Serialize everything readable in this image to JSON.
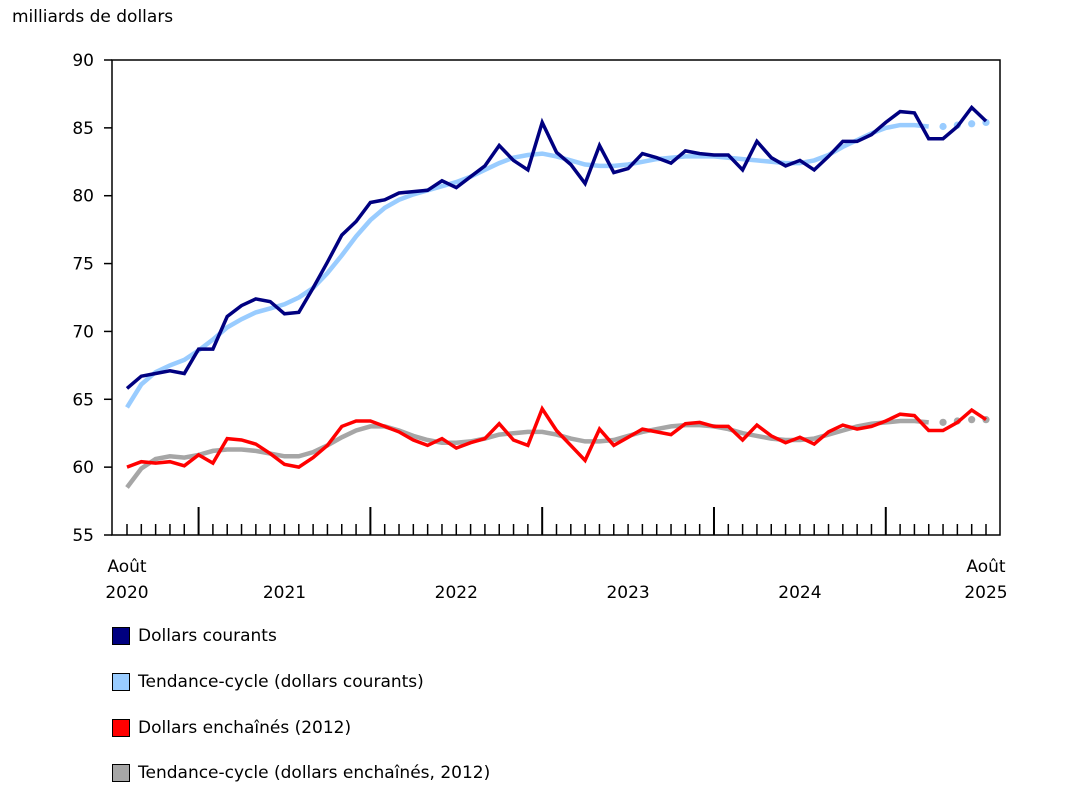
{
  "chart_data": {
    "type": "line",
    "ylabel": "milliards de dollars",
    "ylim": [
      55,
      90
    ],
    "yticks": [
      55,
      60,
      65,
      70,
      75,
      80,
      85,
      90
    ],
    "x_start": "2020-08",
    "x_end": "2025-08",
    "x_tick_labels": [
      {
        "month": "2020-08",
        "line1": "Août",
        "line2": "2020"
      },
      {
        "month": "2021-07",
        "line1": "",
        "line2": "2021"
      },
      {
        "month": "2022-07",
        "line1": "",
        "line2": "2022"
      },
      {
        "month": "2023-07",
        "line1": "",
        "line2": "2023"
      },
      {
        "month": "2024-07",
        "line1": "",
        "line2": "2024"
      },
      {
        "month": "2025-08",
        "line1": "Août",
        "line2": "2025"
      }
    ],
    "grid": false,
    "legend_placement": "bottom",
    "series": [
      {
        "name": "Dollars courants",
        "color": "#000080",
        "style": "solid",
        "values": [
          65.8,
          66.7,
          66.9,
          67.1,
          66.9,
          68.7,
          68.7,
          71.1,
          71.9,
          72.4,
          72.2,
          71.3,
          71.4,
          73.2,
          75.1,
          77.1,
          78.1,
          79.5,
          79.7,
          80.2,
          80.3,
          80.4,
          81.1,
          80.6,
          81.4,
          82.2,
          83.7,
          82.6,
          81.9,
          85.4,
          83.2,
          82.3,
          80.9,
          83.7,
          81.7,
          82.0,
          83.1,
          82.8,
          82.4,
          83.3,
          83.1,
          83.0,
          83.0,
          81.9,
          84.0,
          82.8,
          82.2,
          82.6,
          81.9,
          82.9,
          84.0,
          84.0,
          84.5,
          85.4,
          86.2,
          86.1,
          84.2,
          84.2,
          85.1,
          86.5,
          85.5
        ]
      },
      {
        "name": "Tendance-cycle (dollars courants)",
        "color": "#99ccff",
        "style": "trend",
        "dotted_last": 4,
        "values": [
          64.4,
          66.1,
          67.0,
          67.5,
          67.9,
          68.6,
          69.4,
          70.3,
          70.9,
          71.4,
          71.7,
          72.0,
          72.5,
          73.2,
          74.3,
          75.6,
          77.0,
          78.2,
          79.1,
          79.7,
          80.1,
          80.4,
          80.7,
          81.0,
          81.4,
          81.9,
          82.4,
          82.8,
          83.0,
          83.1,
          82.9,
          82.6,
          82.3,
          82.2,
          82.2,
          82.3,
          82.5,
          82.7,
          82.8,
          82.9,
          82.9,
          82.9,
          82.8,
          82.7,
          82.6,
          82.5,
          82.4,
          82.4,
          82.6,
          83.0,
          83.6,
          84.1,
          84.6,
          85.0,
          85.2,
          85.2,
          85.1,
          85.1,
          85.2,
          85.3,
          85.4
        ]
      },
      {
        "name": "Dollars enchaînés (2012)",
        "color": "#ff0000",
        "style": "solid",
        "values": [
          60.0,
          60.4,
          60.3,
          60.4,
          60.1,
          60.9,
          60.3,
          62.1,
          62.0,
          61.7,
          61.0,
          60.2,
          60.0,
          60.7,
          61.6,
          63.0,
          63.4,
          63.4,
          63.0,
          62.6,
          62.0,
          61.6,
          62.1,
          61.4,
          61.8,
          62.1,
          63.2,
          62.0,
          61.6,
          64.3,
          62.7,
          61.6,
          60.5,
          62.8,
          61.6,
          62.2,
          62.8,
          62.6,
          62.4,
          63.2,
          63.3,
          63.0,
          63.0,
          62.0,
          63.1,
          62.3,
          61.8,
          62.2,
          61.7,
          62.6,
          63.1,
          62.8,
          63.0,
          63.4,
          63.9,
          63.8,
          62.7,
          62.7,
          63.3,
          64.2,
          63.5
        ]
      },
      {
        "name": "Tendance-cycle (dollars enchaînés, 2012)",
        "color": "#a6a6a6",
        "style": "trend",
        "dotted_last": 4,
        "values": [
          58.5,
          59.9,
          60.6,
          60.8,
          60.7,
          60.9,
          61.2,
          61.3,
          61.3,
          61.2,
          61.0,
          60.8,
          60.8,
          61.1,
          61.6,
          62.2,
          62.7,
          63.0,
          63.0,
          62.7,
          62.3,
          62.0,
          61.8,
          61.8,
          61.9,
          62.1,
          62.4,
          62.5,
          62.6,
          62.6,
          62.4,
          62.1,
          61.9,
          61.9,
          62.0,
          62.3,
          62.6,
          62.8,
          63.0,
          63.1,
          63.1,
          63.0,
          62.8,
          62.5,
          62.3,
          62.1,
          62.0,
          62.0,
          62.1,
          62.4,
          62.7,
          63.0,
          63.2,
          63.3,
          63.4,
          63.4,
          63.3,
          63.3,
          63.4,
          63.5,
          63.5
        ]
      }
    ]
  }
}
